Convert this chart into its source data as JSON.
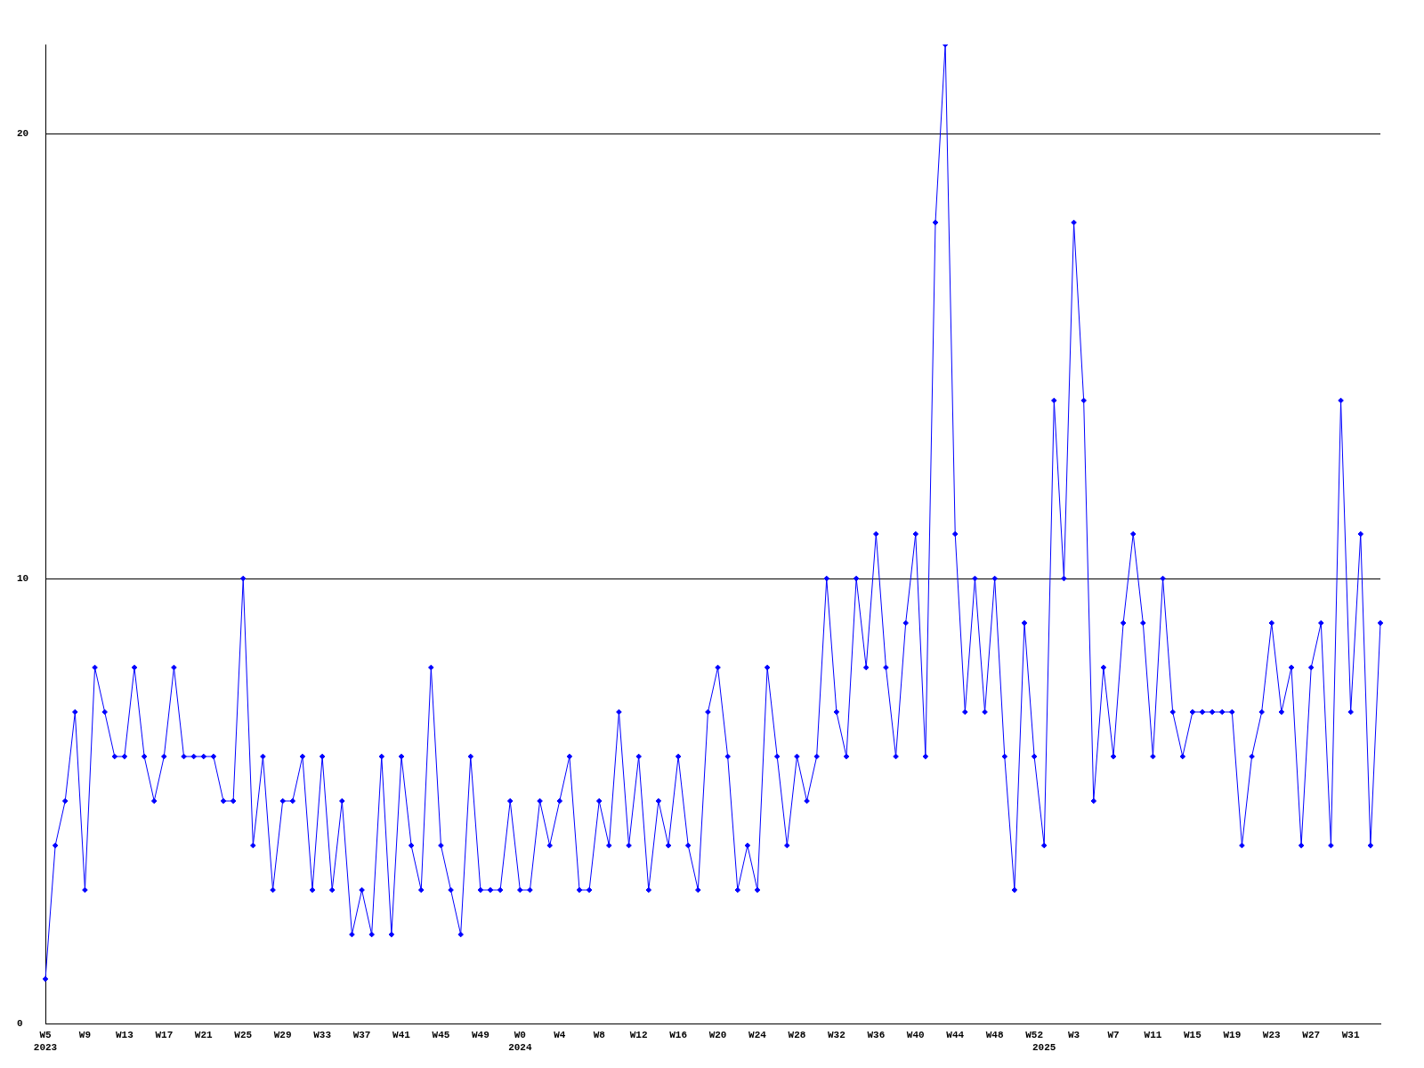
{
  "chart_data": {
    "type": "line",
    "categories": [
      "W5\n2023",
      null,
      null,
      null,
      "W9",
      null,
      null,
      null,
      "W13",
      null,
      null,
      null,
      "W17",
      null,
      null,
      null,
      "W21",
      null,
      null,
      null,
      "W25",
      null,
      null,
      null,
      "W29",
      null,
      null,
      null,
      "W33",
      null,
      null,
      null,
      "W37",
      null,
      null,
      null,
      "W41",
      null,
      null,
      null,
      "W45",
      null,
      null,
      null,
      "W49",
      null,
      null,
      null,
      "W0\n2024",
      null,
      null,
      null,
      "W4",
      null,
      null,
      null,
      "W8",
      null,
      null,
      null,
      "W12",
      null,
      null,
      null,
      "W16",
      null,
      null,
      null,
      "W20",
      null,
      null,
      null,
      "W24",
      null,
      null,
      null,
      "W28",
      null,
      null,
      null,
      "W32",
      null,
      null,
      null,
      "W36",
      null,
      null,
      null,
      "W40",
      null,
      null,
      null,
      "W44",
      null,
      null,
      null,
      "W48",
      null,
      null,
      null,
      "W52",
      "\n2025",
      null,
      null,
      "W3",
      null,
      null,
      null,
      "W7",
      null,
      null,
      null,
      "W11",
      null,
      null,
      null,
      "W15",
      null,
      null,
      null,
      "W19",
      null,
      null,
      null,
      "W23",
      null,
      null,
      null,
      "W27",
      null,
      null,
      null,
      "W31",
      null,
      null,
      null
    ],
    "series": [
      {
        "color": "#0000ff",
        "values": [
          1,
          4,
          5,
          7,
          3,
          8,
          7,
          6,
          6,
          8,
          6,
          5,
          6,
          8,
          6,
          6,
          6,
          6,
          5,
          5,
          10,
          4,
          6,
          3,
          5,
          5,
          6,
          3,
          6,
          3,
          5,
          2,
          3,
          2,
          6,
          2,
          6,
          4,
          3,
          8,
          4,
          3,
          2,
          6,
          3,
          3,
          3,
          5,
          3,
          3,
          5,
          4,
          5,
          6,
          3,
          3,
          5,
          4,
          7,
          4,
          6,
          3,
          5,
          4,
          6,
          4,
          3,
          7,
          8,
          6,
          3,
          4,
          3,
          8,
          6,
          4,
          6,
          5,
          6,
          10,
          7,
          6,
          10,
          8,
          11,
          8,
          6,
          9,
          11,
          6,
          18,
          22,
          11,
          7,
          10,
          7,
          10,
          6,
          3,
          9,
          6,
          4,
          14,
          10,
          18,
          14,
          5,
          8,
          6,
          9,
          11,
          9,
          6,
          10,
          7,
          6,
          7,
          7,
          7,
          7,
          7,
          4,
          6,
          7,
          9,
          7,
          8,
          4,
          8,
          9,
          4,
          14,
          7,
          11,
          4,
          9
        ]
      }
    ],
    "ylim": [
      0,
      22
    ],
    "yticks": [
      0,
      10,
      20
    ],
    "grid": "y",
    "marker": "diamond",
    "line_style": "solid"
  }
}
